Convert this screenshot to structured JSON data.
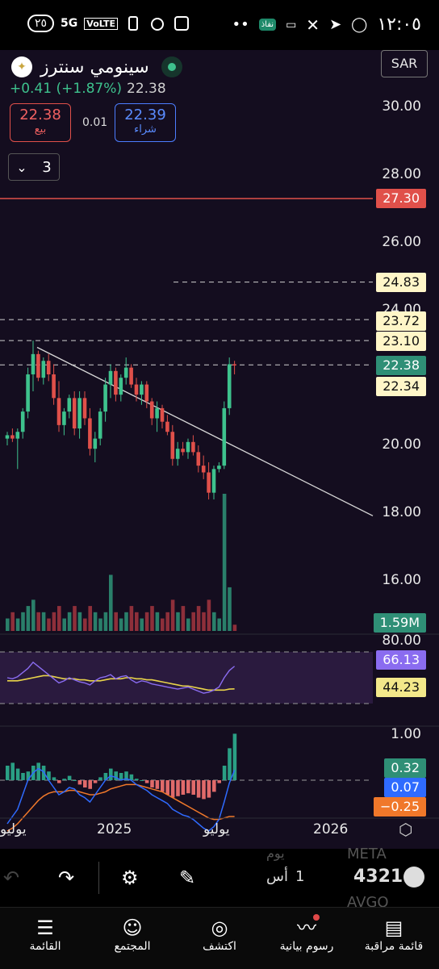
{
  "status_bar": {
    "time": "١٢:٠٥",
    "battery": "٢٥",
    "network": "5G",
    "volte": "VoLTE",
    "nafad": "نفاذ"
  },
  "header": {
    "title": "سينومي سنترز",
    "change": "+0.41 (+1.87%)",
    "last_price": "22.38",
    "currency": "SAR",
    "bid": {
      "price": "22.38",
      "label": "بيع"
    },
    "ask": {
      "price": "22.39",
      "label": "شراء"
    },
    "spread": "0.01",
    "timeframe": "3"
  },
  "y_axis_ticks": [
    "30.00",
    "28.00",
    "26.00",
    "24.00",
    "20.00",
    "18.00",
    "16.00"
  ],
  "price_tags": {
    "red": "27.30",
    "t1": "24.83",
    "t2": "23.72",
    "t3": "23.10",
    "last": "22.38",
    "prev": "22.34",
    "volume": "1.59M"
  },
  "rsi": {
    "upper": "80.00",
    "value": "66.13",
    "ma": "44.23"
  },
  "macd": {
    "top": "1.00",
    "hist": "0.32",
    "macd": "0.07",
    "signal": "−0.25"
  },
  "x_labels": [
    "يوليو",
    "2025",
    "يوليو",
    "2026"
  ],
  "toolbar": {
    "rows": [
      {
        "symbol": "4321",
        "code": "أس",
        "col": "1"
      }
    ],
    "ghost": [
      "META",
      "AVGO",
      "يوم"
    ]
  },
  "nav": [
    {
      "label": "قائمة مراقبة",
      "icon": "clipboard-icon"
    },
    {
      "label": "رسوم بيانية",
      "icon": "chart-icon"
    },
    {
      "label": "اكتشف",
      "icon": "compass-icon"
    },
    {
      "label": "المجتمع",
      "icon": "people-icon"
    },
    {
      "label": "القائمة",
      "icon": "menu-icon"
    }
  ],
  "colors": {
    "up": "#3ec28d",
    "down": "#e0504a",
    "rsi": "#8a6cf0",
    "macd": "#2f6bff",
    "signal": "#f0782a",
    "tag_yellow": "#fff6c8",
    "tag_red": "#e0504a"
  },
  "chart_data": {
    "type": "candlestick",
    "y_ticks": [
      30,
      28,
      26,
      24,
      20,
      18,
      16
    ],
    "candles": [
      [
        20.2,
        20.4,
        20.0,
        20.3
      ],
      [
        20.3,
        20.5,
        20.1,
        20.2
      ],
      [
        20.2,
        20.5,
        19.3,
        20.4
      ],
      [
        20.4,
        21.1,
        20.2,
        21.0
      ],
      [
        21.0,
        22.3,
        20.8,
        22.1
      ],
      [
        22.1,
        23.1,
        21.6,
        22.7
      ],
      [
        22.7,
        22.8,
        21.9,
        22.0
      ],
      [
        22.0,
        22.6,
        21.8,
        22.5
      ],
      [
        22.5,
        22.7,
        21.9,
        22.1
      ],
      [
        22.1,
        22.4,
        21.2,
        21.4
      ],
      [
        21.4,
        21.9,
        20.4,
        20.6
      ],
      [
        20.6,
        21.1,
        20.3,
        21.0
      ],
      [
        21.0,
        21.5,
        20.8,
        21.4
      ],
      [
        21.4,
        21.6,
        20.3,
        20.5
      ],
      [
        20.5,
        21.6,
        20.2,
        21.4
      ],
      [
        21.4,
        21.6,
        20.6,
        20.8
      ],
      [
        20.8,
        21.1,
        19.7,
        19.9
      ],
      [
        19.9,
        20.4,
        19.5,
        20.2
      ],
      [
        20.2,
        21.1,
        20.0,
        21.0
      ],
      [
        21.0,
        22.0,
        20.7,
        21.8
      ],
      [
        21.8,
        22.4,
        21.4,
        22.2
      ],
      [
        22.2,
        22.3,
        21.3,
        21.5
      ],
      [
        21.5,
        22.1,
        21.3,
        22.0
      ],
      [
        22.0,
        22.6,
        21.8,
        22.3
      ],
      [
        22.3,
        22.4,
        21.7,
        21.8
      ],
      [
        21.8,
        22.0,
        21.3,
        21.5
      ],
      [
        21.5,
        21.9,
        21.2,
        21.8
      ],
      [
        21.8,
        21.9,
        21.1,
        21.3
      ],
      [
        21.3,
        21.4,
        20.6,
        20.8
      ],
      [
        20.8,
        21.3,
        20.4,
        21.1
      ],
      [
        21.1,
        21.2,
        20.5,
        20.7
      ],
      [
        20.7,
        20.9,
        20.3,
        20.4
      ],
      [
        20.4,
        20.6,
        19.4,
        19.6
      ],
      [
        19.6,
        20.1,
        19.4,
        19.9
      ],
      [
        19.9,
        20.1,
        19.7,
        19.8
      ],
      [
        19.8,
        20.2,
        19.6,
        20.1
      ],
      [
        20.1,
        20.3,
        19.7,
        19.8
      ],
      [
        19.8,
        20.0,
        19.2,
        19.4
      ],
      [
        19.4,
        19.7,
        19.0,
        19.2
      ],
      [
        19.2,
        19.5,
        18.4,
        18.6
      ],
      [
        18.6,
        19.4,
        18.4,
        19.3
      ],
      [
        19.3,
        19.5,
        19.2,
        19.4
      ],
      [
        19.4,
        21.3,
        19.3,
        21.1
      ],
      [
        21.1,
        22.6,
        20.9,
        22.4
      ],
      [
        22.4,
        22.5,
        22.1,
        22.38
      ]
    ],
    "volume": [
      2,
      3,
      2,
      3,
      4,
      5,
      3,
      3,
      2,
      3,
      4,
      2,
      3,
      4,
      3,
      2,
      4,
      3,
      2,
      3,
      9,
      3,
      2,
      3,
      4,
      3,
      2,
      3,
      4,
      3,
      2,
      3,
      5,
      3,
      4,
      2,
      3,
      4,
      3,
      5,
      3,
      2,
      22,
      7,
      1
    ],
    "trendline": [
      [
        22.9,
        0
      ],
      [
        19.3,
        44
      ]
    ],
    "dashed_levels": [
      24.83,
      23.72,
      23.1,
      22.38
    ],
    "red_level": 27.3,
    "rsi": [
      55,
      54,
      56,
      60,
      64,
      70,
      66,
      62,
      58,
      54,
      50,
      52,
      55,
      53,
      51,
      50,
      48,
      52,
      55,
      56,
      58,
      54,
      56,
      57,
      53,
      50,
      52,
      51,
      49,
      48,
      47,
      46,
      45,
      44,
      45,
      46,
      44,
      42,
      40,
      41,
      43,
      46,
      55,
      62,
      66.13
    ],
    "rsi_ma": [
      52,
      52,
      52,
      53,
      54,
      55,
      56,
      57,
      57,
      56,
      55,
      54,
      54,
      54,
      53,
      53,
      52,
      52,
      52,
      53,
      54,
      54,
      54,
      55,
      55,
      54,
      54,
      53,
      53,
      52,
      51,
      50,
      49,
      48,
      47,
      47,
      46,
      45,
      44,
      43,
      43,
      43,
      43,
      44,
      44.23
    ],
    "macd_hist": [
      0.1,
      0.12,
      0.08,
      0.05,
      0.06,
      0.1,
      0.12,
      0.1,
      0.06,
      0.02,
      -0.02,
      0.01,
      0.03,
      0.0,
      -0.03,
      -0.05,
      -0.06,
      -0.02,
      0.02,
      0.05,
      0.08,
      0.06,
      0.05,
      0.06,
      0.04,
      0.01,
      0.0,
      -0.02,
      -0.05,
      -0.06,
      -0.08,
      -0.1,
      -0.12,
      -0.11,
      -0.1,
      -0.09,
      -0.1,
      -0.12,
      -0.13,
      -0.12,
      -0.08,
      -0.02,
      0.1,
      0.22,
      0.32
    ],
    "macd_line": [
      -0.3,
      -0.25,
      -0.2,
      -0.1,
      0.0,
      0.05,
      0.08,
      0.06,
      0.0,
      -0.05,
      -0.1,
      -0.08,
      -0.05,
      -0.06,
      -0.1,
      -0.12,
      -0.15,
      -0.1,
      -0.05,
      0.0,
      0.03,
      0.02,
      0.0,
      0.01,
      0.0,
      -0.03,
      -0.05,
      -0.07,
      -0.1,
      -0.12,
      -0.14,
      -0.16,
      -0.2,
      -0.22,
      -0.24,
      -0.25,
      -0.27,
      -0.3,
      -0.33,
      -0.35,
      -0.32,
      -0.27,
      -0.15,
      -0.02,
      0.07
    ],
    "signal_line": [
      -0.35,
      -0.33,
      -0.3,
      -0.26,
      -0.22,
      -0.18,
      -0.14,
      -0.11,
      -0.09,
      -0.08,
      -0.08,
      -0.08,
      -0.07,
      -0.07,
      -0.08,
      -0.09,
      -0.1,
      -0.1,
      -0.09,
      -0.08,
      -0.06,
      -0.05,
      -0.04,
      -0.03,
      -0.03,
      -0.03,
      -0.04,
      -0.05,
      -0.06,
      -0.07,
      -0.08,
      -0.1,
      -0.12,
      -0.14,
      -0.16,
      -0.18,
      -0.2,
      -0.22,
      -0.24,
      -0.26,
      -0.27,
      -0.27,
      -0.26,
      -0.25,
      -0.25
    ]
  }
}
